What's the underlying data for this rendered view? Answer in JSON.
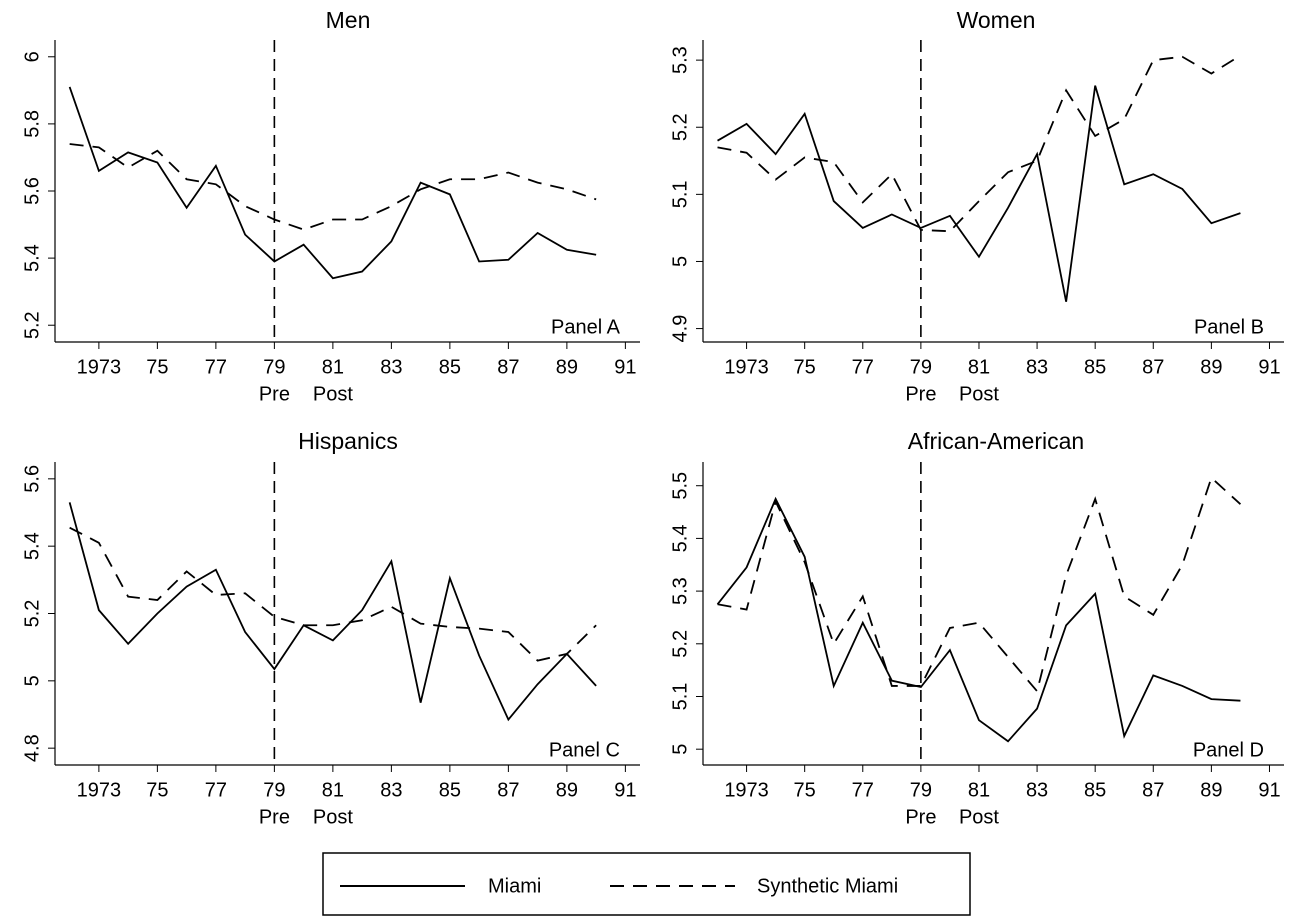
{
  "chart_data": [
    {
      "type": "line",
      "title": "Men",
      "panel_label": "Panel A",
      "x": [
        1972,
        1973,
        1974,
        1975,
        1976,
        1977,
        1978,
        1979,
        1980,
        1981,
        1982,
        1983,
        1984,
        1985,
        1986,
        1987,
        1988,
        1989,
        1990
      ],
      "xlim": [
        1971.5,
        1991.5
      ],
      "xticks": [
        1973,
        {
          "value": 1975,
          "label": "75"
        },
        {
          "value": 1977,
          "label": "77"
        },
        {
          "value": 1979,
          "label": "79"
        },
        {
          "value": 1981,
          "label": "81"
        },
        {
          "value": 1983,
          "label": "83"
        },
        {
          "value": 1985,
          "label": "85"
        },
        {
          "value": 1987,
          "label": "87"
        },
        {
          "value": 1989,
          "label": "89"
        },
        {
          "value": 1991,
          "label": "91"
        }
      ],
      "x_annotations": [
        {
          "text": "Pre",
          "x": 1979
        },
        {
          "text": "Post",
          "x": 1981
        }
      ],
      "vline": 1979,
      "ylim": [
        5.15,
        6.05
      ],
      "yticks": [
        5.2,
        5.4,
        5.6,
        5.8,
        6
      ],
      "series": [
        {
          "name": "Miami",
          "color": "#000000",
          "dash": "solid",
          "values": [
            5.91,
            5.66,
            5.715,
            5.685,
            5.55,
            5.675,
            5.47,
            5.39,
            5.44,
            5.34,
            5.36,
            5.45,
            5.625,
            5.59,
            5.39,
            5.395,
            5.475,
            5.425,
            5.41
          ]
        },
        {
          "name": "Synthetic Miami",
          "color": "#000000",
          "dash": "dashed",
          "values": [
            5.74,
            5.73,
            5.67,
            5.72,
            5.635,
            5.62,
            5.555,
            5.515,
            5.485,
            5.515,
            5.515,
            5.555,
            5.605,
            5.635,
            5.635,
            5.655,
            5.625,
            5.605,
            5.575
          ]
        }
      ]
    },
    {
      "type": "line",
      "title": "Women",
      "panel_label": "Panel B",
      "x": [
        1972,
        1973,
        1974,
        1975,
        1976,
        1977,
        1978,
        1979,
        1980,
        1981,
        1982,
        1983,
        1984,
        1985,
        1986,
        1987,
        1988,
        1989,
        1990
      ],
      "xlim": [
        1971.5,
        1991.5
      ],
      "xticks": [
        1973,
        {
          "value": 1975,
          "label": "75"
        },
        {
          "value": 1977,
          "label": "77"
        },
        {
          "value": 1979,
          "label": "79"
        },
        {
          "value": 1981,
          "label": "81"
        },
        {
          "value": 1983,
          "label": "83"
        },
        {
          "value": 1985,
          "label": "85"
        },
        {
          "value": 1987,
          "label": "87"
        },
        {
          "value": 1989,
          "label": "89"
        },
        {
          "value": 1991,
          "label": "91"
        }
      ],
      "x_annotations": [
        {
          "text": "Pre",
          "x": 1979
        },
        {
          "text": "Post",
          "x": 1981
        }
      ],
      "vline": 1979,
      "ylim": [
        4.88,
        5.33
      ],
      "yticks": [
        4.9,
        5,
        5.1,
        5.2,
        5.3
      ],
      "series": [
        {
          "name": "Miami",
          "color": "#000000",
          "dash": "solid",
          "values": [
            5.18,
            5.205,
            5.16,
            5.22,
            5.09,
            5.05,
            5.07,
            5.05,
            5.068,
            5.007,
            5.08,
            5.16,
            4.94,
            5.262,
            5.115,
            5.13,
            5.108,
            5.057,
            5.072
          ]
        },
        {
          "name": "Synthetic Miami",
          "color": "#000000",
          "dash": "dashed",
          "values": [
            5.17,
            5.162,
            5.122,
            5.155,
            5.148,
            5.088,
            5.13,
            5.047,
            5.045,
            5.09,
            5.133,
            5.15,
            5.255,
            5.187,
            5.212,
            5.3,
            5.305,
            5.28,
            5.307
          ]
        }
      ]
    },
    {
      "type": "line",
      "title": "Hispanics",
      "panel_label": "Panel C",
      "x": [
        1972,
        1973,
        1974,
        1975,
        1976,
        1977,
        1978,
        1979,
        1980,
        1981,
        1982,
        1983,
        1984,
        1985,
        1986,
        1987,
        1988,
        1989,
        1990
      ],
      "xlim": [
        1971.5,
        1991.5
      ],
      "xticks": [
        1973,
        {
          "value": 1975,
          "label": "75"
        },
        {
          "value": 1977,
          "label": "77"
        },
        {
          "value": 1979,
          "label": "79"
        },
        {
          "value": 1981,
          "label": "81"
        },
        {
          "value": 1983,
          "label": "83"
        },
        {
          "value": 1985,
          "label": "85"
        },
        {
          "value": 1987,
          "label": "87"
        },
        {
          "value": 1989,
          "label": "89"
        },
        {
          "value": 1991,
          "label": "91"
        }
      ],
      "x_annotations": [
        {
          "text": "Pre",
          "x": 1979
        },
        {
          "text": "Post",
          "x": 1981
        }
      ],
      "vline": 1979,
      "ylim": [
        4.75,
        5.65
      ],
      "yticks": [
        4.8,
        5,
        5.2,
        5.4,
        5.6
      ],
      "series": [
        {
          "name": "Miami",
          "color": "#000000",
          "dash": "solid",
          "values": [
            5.53,
            5.21,
            5.11,
            5.2,
            5.28,
            5.33,
            5.145,
            5.035,
            5.165,
            5.12,
            5.21,
            5.355,
            4.935,
            5.305,
            5.075,
            4.885,
            4.99,
            5.08,
            4.985
          ]
        },
        {
          "name": "Synthetic Miami",
          "color": "#000000",
          "dash": "dashed",
          "values": [
            5.455,
            5.41,
            5.25,
            5.24,
            5.325,
            5.255,
            5.26,
            5.19,
            5.165,
            5.165,
            5.18,
            5.22,
            5.17,
            5.16,
            5.155,
            5.145,
            5.06,
            5.08,
            5.165
          ]
        }
      ]
    },
    {
      "type": "line",
      "title": "African-American",
      "panel_label": "Panel D",
      "x": [
        1972,
        1973,
        1974,
        1975,
        1976,
        1977,
        1978,
        1979,
        1980,
        1981,
        1982,
        1983,
        1984,
        1985,
        1986,
        1987,
        1988,
        1989,
        1990
      ],
      "xlim": [
        1971.5,
        1991.5
      ],
      "xticks": [
        1973,
        {
          "value": 1975,
          "label": "75"
        },
        {
          "value": 1977,
          "label": "77"
        },
        {
          "value": 1979,
          "label": "79"
        },
        {
          "value": 1981,
          "label": "81"
        },
        {
          "value": 1983,
          "label": "83"
        },
        {
          "value": 1985,
          "label": "85"
        },
        {
          "value": 1987,
          "label": "87"
        },
        {
          "value": 1989,
          "label": "89"
        },
        {
          "value": 1991,
          "label": "91"
        }
      ],
      "x_annotations": [
        {
          "text": "Pre",
          "x": 1979
        },
        {
          "text": "Post",
          "x": 1981
        }
      ],
      "vline": 1979,
      "ylim": [
        4.97,
        5.545
      ],
      "yticks": [
        5,
        5.1,
        5.2,
        5.3,
        5.4,
        5.5
      ],
      "series": [
        {
          "name": "Miami",
          "color": "#000000",
          "dash": "solid",
          "values": [
            5.275,
            5.345,
            5.475,
            5.365,
            5.12,
            5.24,
            5.13,
            5.118,
            5.188,
            5.055,
            5.015,
            5.077,
            5.235,
            5.295,
            5.025,
            5.14,
            5.12,
            5.095,
            5.092
          ]
        },
        {
          "name": "Synthetic Miami",
          "color": "#000000",
          "dash": "dashed",
          "values": [
            5.275,
            5.265,
            5.47,
            5.355,
            5.2,
            5.29,
            5.12,
            5.12,
            5.23,
            5.24,
            5.175,
            5.11,
            5.33,
            5.475,
            5.29,
            5.255,
            5.35,
            5.515,
            5.465
          ]
        }
      ]
    }
  ]
}
